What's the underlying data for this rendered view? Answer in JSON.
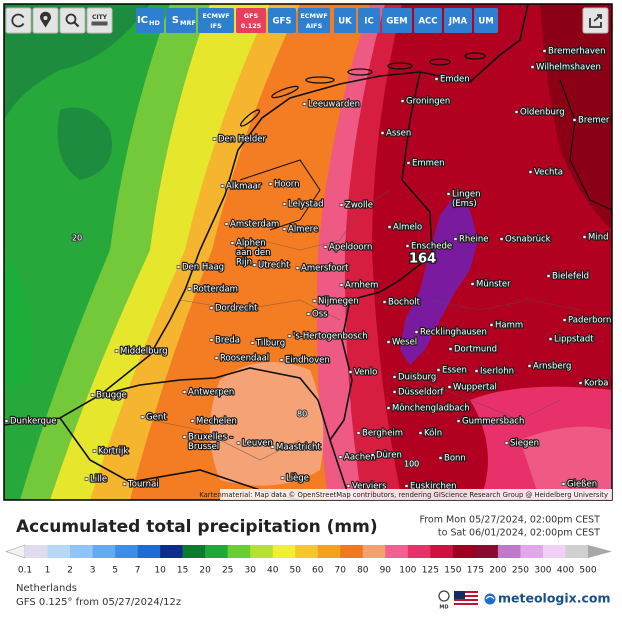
{
  "toolbar": {
    "city_icon": "CITY",
    "buttons": [
      {
        "label": "IC",
        "sub": "HD"
      },
      {
        "label": "S",
        "sub": "MRF"
      },
      {
        "label": "ECMWF",
        "sub": "IFS"
      },
      {
        "label": "GFS",
        "sub": "0.125",
        "selected": true
      },
      {
        "label": "GFS"
      },
      {
        "label": "ECMWF",
        "sub": "AIFS"
      },
      {
        "label": "UK"
      },
      {
        "label": "IC"
      },
      {
        "label": "GEM"
      },
      {
        "label": "ACC"
      },
      {
        "label": "JMA"
      },
      {
        "label": "UM"
      }
    ]
  },
  "map": {
    "cities": [
      "Bremerhaven",
      "Wilhelmshaven",
      "Emden",
      "Oldenburg",
      "Bremer",
      "Leeuwarden",
      "Groningen",
      "Den Helder",
      "Assen",
      "Emmen",
      "Vechta",
      "Alkmaar",
      "Hoorn",
      "Lelystad",
      "Zwolle",
      [
        "Lingen",
        "(Ems)"
      ],
      "Almelo",
      "Amsterdam",
      "Almere",
      "Enschede",
      "Rheine",
      "Osnabrück",
      "Mind",
      [
        "Alphen",
        "aan den",
        "Rijn"
      ],
      "Utrecht",
      "Amersfoort",
      "Apeldoorn",
      "Den Haag",
      "Bielefeld",
      "Rotterdam",
      "Arnhem",
      "Münster",
      "Dordrecht",
      "Nijmegen",
      "Bocholt",
      "Oss",
      "Hamm",
      "Paderborn",
      "'s-Hertogenbosch",
      "Recklinghausen",
      "Lippstadt",
      "Breda",
      "Tilburg",
      "Wesel",
      "Dortmund",
      "Middelburg",
      "Roosendaal",
      "Eindhoven",
      "Venlo",
      "Essen",
      "Iserlohn",
      "Arnsberg",
      "Duisburg",
      "Wuppertal",
      "Korba",
      "Antwerpen",
      "Düsseldorf",
      "Brugge",
      "Mönchengladbach",
      "Dunkerque",
      "Gent",
      "Mechelen",
      "Gummersbach",
      "Bergheim",
      "Köln",
      [
        "Bruxelles -",
        "Brussel"
      ],
      "Leuven",
      "Maastricht",
      "Siegen",
      "Kortrijk",
      "Aachen",
      "Düren",
      "Bonn",
      "Lille",
      "Tournai",
      "Liège",
      "Verviers",
      "Euskirchen",
      "Gießen"
    ],
    "contour_labels": [
      "20",
      "80",
      "100"
    ],
    "max_value": "164",
    "attribution": "Kartenmaterial: Map data © OpenStreetMap contributors, rendering GIScience Research Group @ Heidelberg University"
  },
  "legend": {
    "title": "Accumulated total precipitation (mm)",
    "period": [
      "From Mon 05/27/2024, 02:00pm CEST",
      "to Sat 06/01/2024, 02:00pm CEST"
    ],
    "ticks": [
      "0.1",
      "1",
      "2",
      "3",
      "5",
      "7",
      "10",
      "15",
      "20",
      "25",
      "30",
      "40",
      "50",
      "60",
      "70",
      "80",
      "90",
      "100",
      "125",
      "150",
      "175",
      "200",
      "250",
      "300",
      "400",
      "500"
    ],
    "colors": [
      "#e0dcf0",
      "#b8d8f8",
      "#90c4f4",
      "#64aaf0",
      "#3c8ee6",
      "#1c6cd4",
      "#102c8a",
      "#0e7a30",
      "#22a83a",
      "#6ccc34",
      "#b8e030",
      "#f0f030",
      "#f4c828",
      "#f4a020",
      "#f07820",
      "#f4a070",
      "#f06090",
      "#e8306a",
      "#d21040",
      "#a00020",
      "#8a0a30",
      "#c078c8",
      "#e0a8e8",
      "#f0d0f4",
      "#d0d0d0"
    ]
  },
  "footer": {
    "region": "Netherlands",
    "model": "GFS 0.125° from 05/27/2024/12z",
    "md": "MD",
    "brand": "meteologix.com"
  }
}
